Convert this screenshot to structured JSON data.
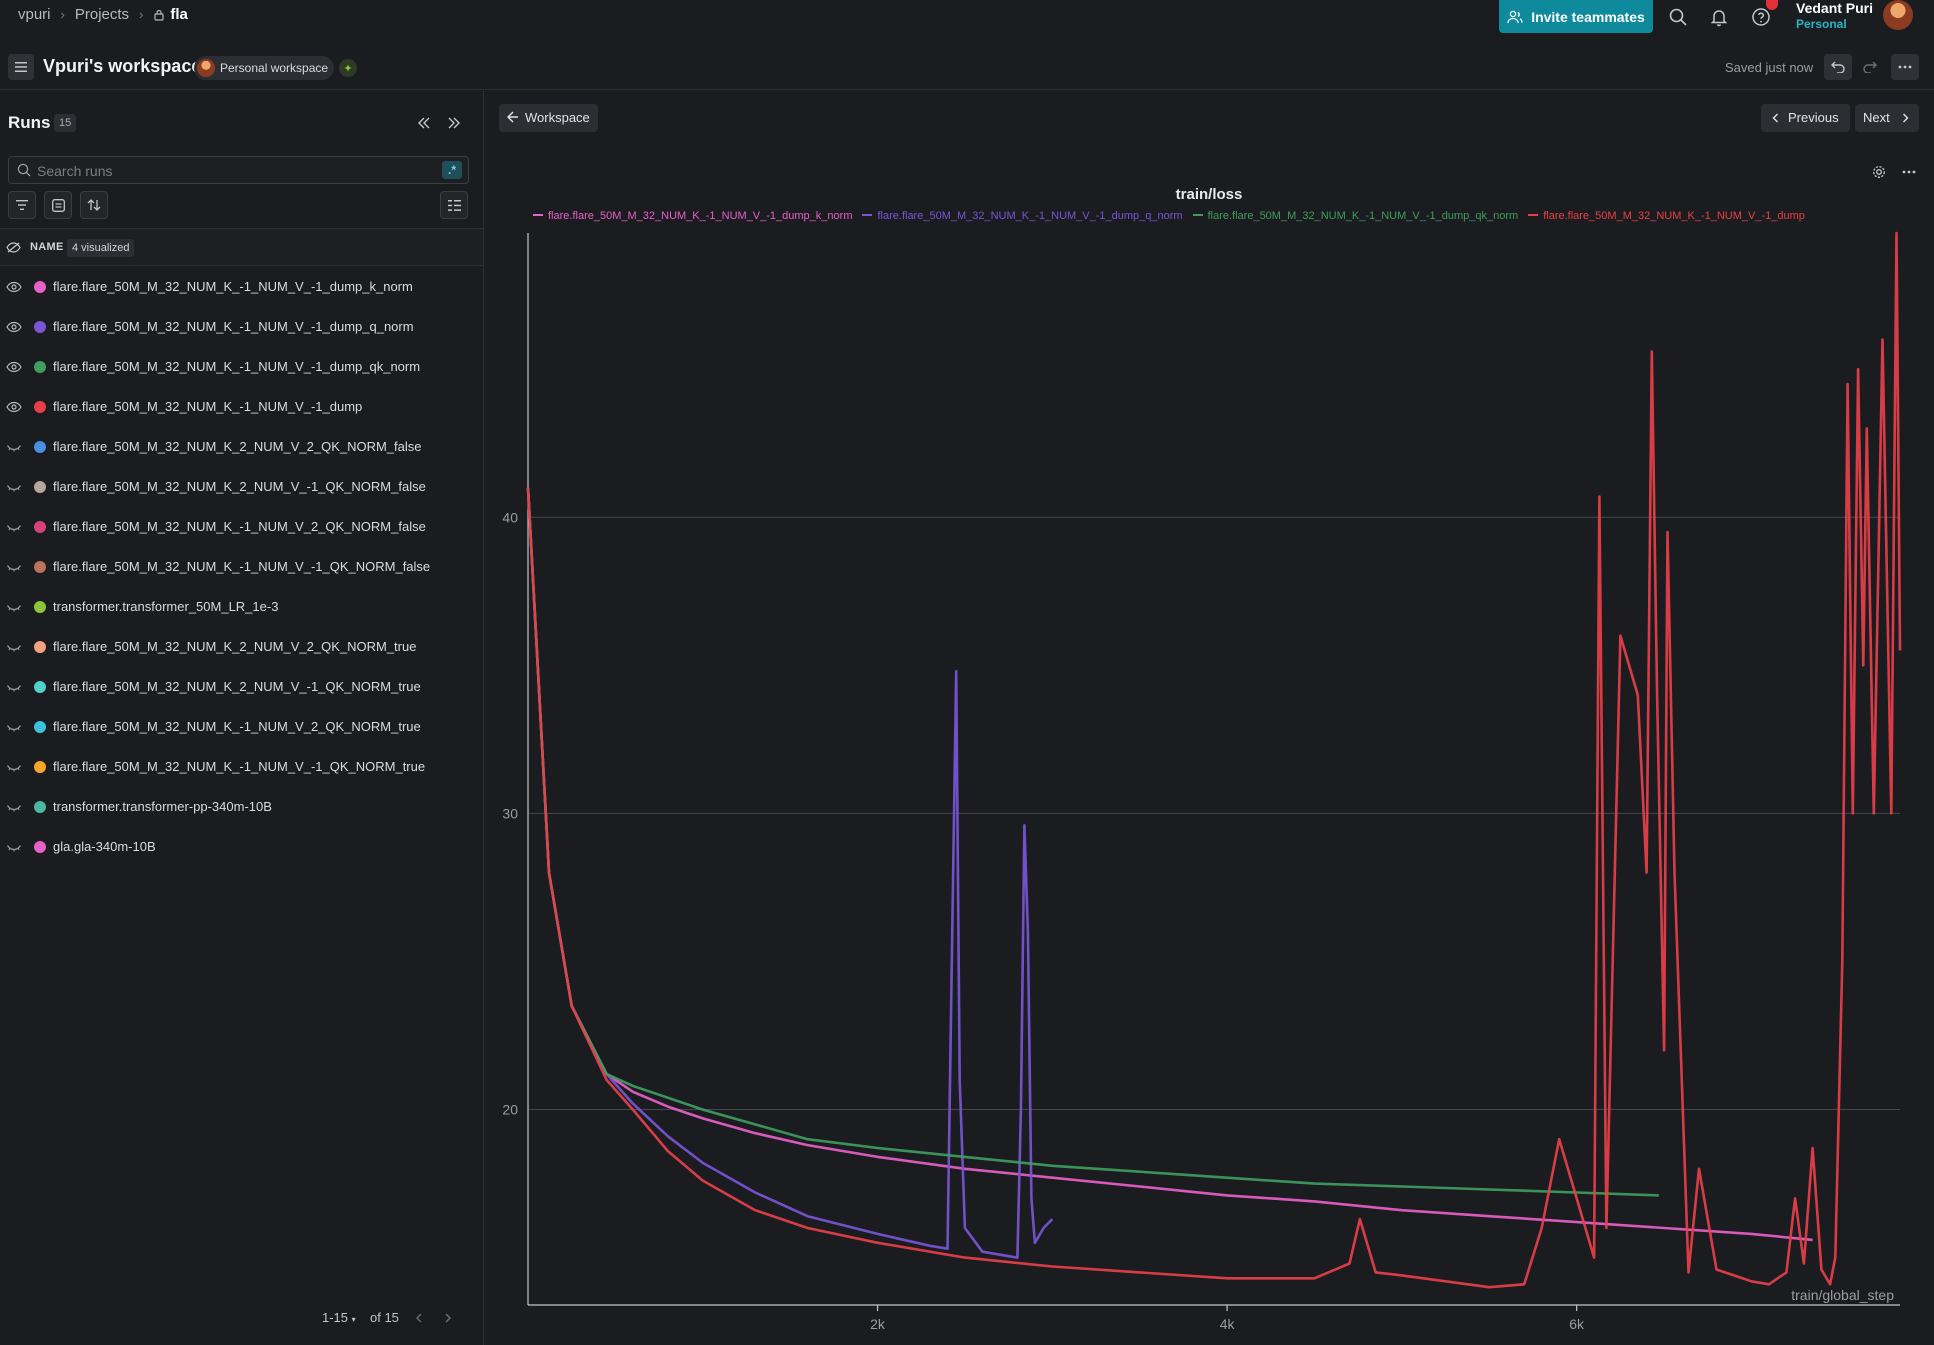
{
  "breadcrumb": {
    "entity": "vpuri",
    "projects": "Projects",
    "project": "fla"
  },
  "topbar": {
    "invite_label": "Invite teammates",
    "user_name": "Vedant Puri",
    "user_plan": "Personal"
  },
  "workspace": {
    "title": "Vpuri's workspace",
    "badge": "Personal workspace",
    "saved_status": "Saved just now"
  },
  "sidebar": {
    "title": "Runs",
    "count": "15",
    "search_placeholder": "Search runs",
    "regex_label": ".*",
    "column_name": "NAME",
    "visualized": "4 visualized",
    "pager_range": "1-15",
    "pager_of": "of 15",
    "runs": [
      {
        "name": "flare.flare_50M_M_32_NUM_K_-1_NUM_V_-1_dump_k_norm",
        "color": "#e860c9",
        "visible": true
      },
      {
        "name": "flare.flare_50M_M_32_NUM_K_-1_NUM_V_-1_dump_q_norm",
        "color": "#7a55d6",
        "visible": true
      },
      {
        "name": "flare.flare_50M_M_32_NUM_K_-1_NUM_V_-1_dump_qk_norm",
        "color": "#3f9d5e",
        "visible": true
      },
      {
        "name": "flare.flare_50M_M_32_NUM_K_-1_NUM_V_-1_dump",
        "color": "#e8404b",
        "visible": true
      },
      {
        "name": "flare.flare_50M_M_32_NUM_K_2_NUM_V_2_QK_NORM_false",
        "color": "#4a8fe0",
        "visible": false
      },
      {
        "name": "flare.flare_50M_M_32_NUM_K_2_NUM_V_-1_QK_NORM_false",
        "color": "#b3a79a",
        "visible": false
      },
      {
        "name": "flare.flare_50M_M_32_NUM_K_-1_NUM_V_2_QK_NORM_false",
        "color": "#d8417f",
        "visible": false
      },
      {
        "name": "flare.flare_50M_M_32_NUM_K_-1_NUM_V_-1_QK_NORM_false",
        "color": "#b9745a",
        "visible": false
      },
      {
        "name": "transformer.transformer_50M_LR_1e-3",
        "color": "#8cc43b",
        "visible": false
      },
      {
        "name": "flare.flare_50M_M_32_NUM_K_2_NUM_V_2_QK_NORM_true",
        "color": "#f2a07d",
        "visible": false
      },
      {
        "name": "flare.flare_50M_M_32_NUM_K_2_NUM_V_-1_QK_NORM_true",
        "color": "#4fd1c9",
        "visible": false
      },
      {
        "name": "flare.flare_50M_M_32_NUM_K_-1_NUM_V_2_QK_NORM_true",
        "color": "#3ec1de",
        "visible": false
      },
      {
        "name": "flare.flare_50M_M_32_NUM_K_-1_NUM_V_-1_QK_NORM_true",
        "color": "#f4a825",
        "visible": false
      },
      {
        "name": "transformer.transformer-pp-340m-10B",
        "color": "#4cb8a1",
        "visible": false
      },
      {
        "name": "gla.gla-340m-10B",
        "color": "#e860c9",
        "visible": false
      }
    ]
  },
  "main": {
    "back_label": "Workspace",
    "previous_label": "Previous",
    "next_label": "Next"
  },
  "chart_data": {
    "type": "line",
    "title": "train/loss",
    "xlabel": "train/global_step",
    "ylabel": "",
    "xlim": [
      0,
      7850
    ],
    "ylim": [
      13.4,
      49.6
    ],
    "xticks": [
      {
        "v": 2000,
        "label": "2k"
      },
      {
        "v": 4000,
        "label": "4k"
      },
      {
        "v": 6000,
        "label": "6k"
      }
    ],
    "yticks": [
      {
        "v": 20,
        "label": "20"
      },
      {
        "v": 30,
        "label": "30"
      },
      {
        "v": 40,
        "label": "40"
      }
    ],
    "grid": "horizontal",
    "legend_position": "top",
    "series": [
      {
        "name": "flare.flare_50M_M_32_NUM_K_-1_NUM_V_-1_dump_k_norm",
        "color": "#e860c9",
        "x": [
          0,
          120,
          250,
          450,
          600,
          800,
          1000,
          1300,
          1600,
          2000,
          2500,
          3000,
          3500,
          4000,
          4500,
          5000,
          5500,
          6000,
          6500,
          7000,
          7350
        ],
        "y": [
          41,
          28,
          23.5,
          21.2,
          20.6,
          20.1,
          19.7,
          19.2,
          18.8,
          18.4,
          18.0,
          17.7,
          17.4,
          17.1,
          16.9,
          16.6,
          16.4,
          16.2,
          16.0,
          15.8,
          15.6
        ]
      },
      {
        "name": "flare.flare_50M_M_32_NUM_K_-1_NUM_V_-1_dump_q_norm",
        "color": "#7a55d6",
        "x": [
          0,
          120,
          250,
          450,
          600,
          800,
          1000,
          1300,
          1600,
          2000,
          2300,
          2400,
          2430,
          2450,
          2470,
          2500,
          2600,
          2700,
          2800,
          2820,
          2840,
          2860,
          2880,
          2900,
          2950,
          3000
        ],
        "y": [
          41,
          28,
          23.5,
          21.2,
          20.2,
          19.1,
          18.2,
          17.2,
          16.4,
          15.8,
          15.4,
          15.3,
          27,
          34.8,
          21,
          16,
          15.2,
          15.1,
          15.0,
          20,
          29.6,
          26,
          17,
          15.5,
          16,
          16.3
        ]
      },
      {
        "name": "flare.flare_50M_M_32_NUM_K_-1_NUM_V_-1_dump_qk_norm",
        "color": "#3f9d5e",
        "x": [
          0,
          120,
          250,
          450,
          600,
          800,
          1000,
          1300,
          1600,
          2000,
          2500,
          3000,
          3500,
          4000,
          4500,
          5000,
          5500,
          6000,
          6470
        ],
        "y": [
          41,
          28,
          23.5,
          21.2,
          20.8,
          20.4,
          20.0,
          19.5,
          19.0,
          18.7,
          18.4,
          18.1,
          17.9,
          17.7,
          17.5,
          17.4,
          17.3,
          17.2,
          17.1
        ]
      },
      {
        "name": "flare.flare_50M_M_32_NUM_K_-1_NUM_V_-1_dump",
        "color": "#e8404b",
        "x": [
          0,
          120,
          250,
          450,
          600,
          800,
          1000,
          1300,
          1600,
          2000,
          2500,
          3000,
          3500,
          4000,
          4500,
          4700,
          4760,
          4850,
          5000,
          5500,
          5700,
          5800,
          5900,
          6000,
          6100,
          6130,
          6170,
          6250,
          6350,
          6400,
          6430,
          6460,
          6500,
          6520,
          6560,
          6640,
          6700,
          6800,
          6900,
          7000,
          7100,
          7200,
          7250,
          7300,
          7350,
          7400,
          7450,
          7480,
          7520,
          7550,
          7580,
          7610,
          7640,
          7660,
          7700,
          7750,
          7800,
          7830,
          7850
        ],
        "y": [
          41,
          28,
          23.5,
          21.0,
          20.0,
          18.6,
          17.6,
          16.6,
          16.0,
          15.5,
          15.0,
          14.7,
          14.5,
          14.3,
          14.3,
          14.8,
          16.3,
          14.5,
          14.4,
          14.0,
          14.1,
          16,
          19,
          17,
          15,
          40.7,
          16,
          36,
          34,
          28,
          45.6,
          34,
          22,
          39.5,
          28,
          14.5,
          18,
          14.6,
          14.4,
          14.2,
          14.1,
          14.5,
          17,
          14.8,
          18.7,
          14.6,
          14.1,
          15,
          25,
          44.5,
          30,
          45,
          35,
          43,
          30,
          46,
          30,
          49.6,
          35.5
        ]
      }
    ]
  }
}
